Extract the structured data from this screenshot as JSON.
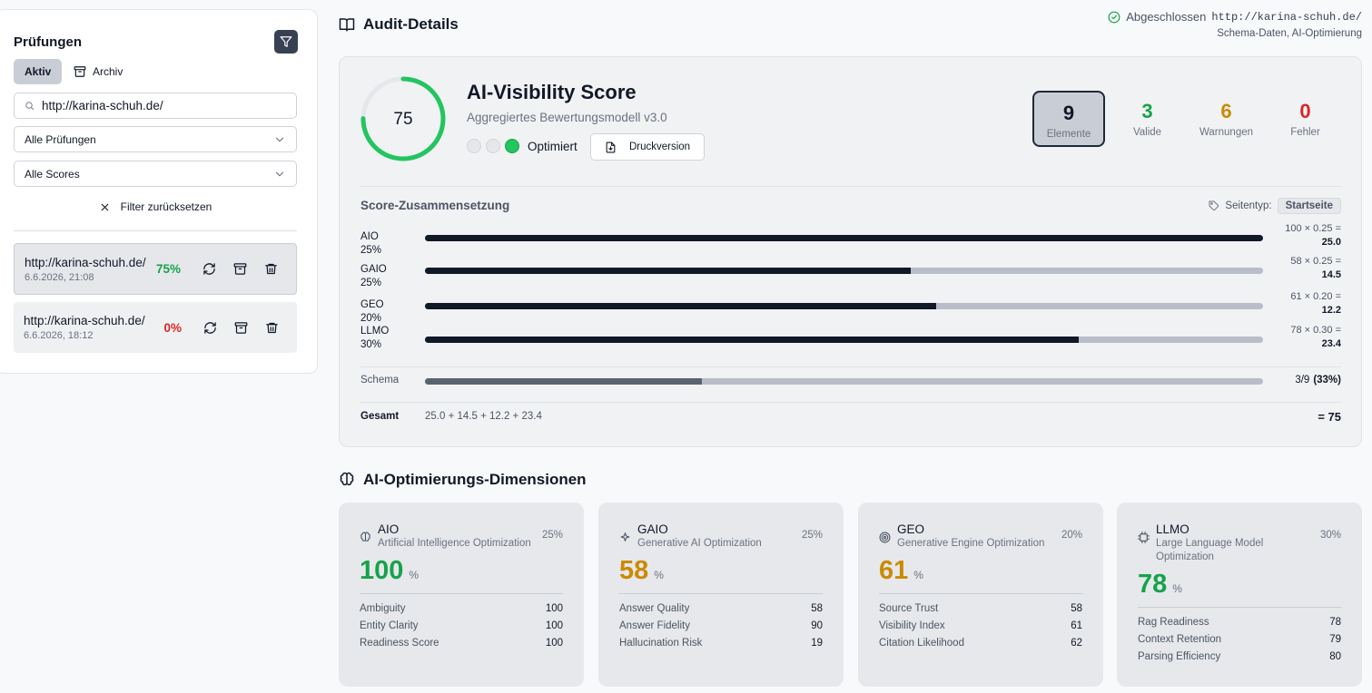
{
  "sidebar": {
    "title": "Prüfungen",
    "tabs": [
      "Aktiv",
      "Archiv"
    ],
    "search": "http://karina-schuh.de/",
    "filters": [
      "Alle Prüfungen",
      "Alle Scores"
    ],
    "reset": "Filter zurücksetzen",
    "audits": [
      {
        "url": "http://karina-schuh.de/",
        "date": "6.6.2026, 21:08",
        "score": "75%",
        "color": "#16a34a"
      },
      {
        "url": "http://karina-schuh.de/",
        "date": "6.6.2026, 18:12",
        "score": "0%",
        "color": "#dc2626"
      }
    ]
  },
  "header": {
    "title": "Audit-Details",
    "status": "Abgeschlossen",
    "url": "http://karina-schuh.de/",
    "subtitle": "Schema-Daten, AI-Optimierung"
  },
  "score_card": {
    "score": 75,
    "title": "AI-Visibility Score",
    "subtitle": "Aggregiertes Bewertungsmodell v3.0",
    "status": "Optimiert",
    "print": "Druckversion",
    "stats": [
      {
        "value": 9,
        "label": "Elemente",
        "color": "#111827"
      },
      {
        "value": 3,
        "label": "Valide",
        "color": "#16a34a"
      },
      {
        "value": 6,
        "label": "Warnungen",
        "color": "#ca8a04"
      },
      {
        "value": 0,
        "label": "Fehler",
        "color": "#dc2626"
      }
    ]
  },
  "composition": {
    "title": "Score-Zusammensetzung",
    "page_type_label": "Seitentyp:",
    "page_type": "Startseite",
    "rows": [
      {
        "label": "AIO 25%",
        "value": 100,
        "formula": "100 × 0.25 =",
        "result": "25.0"
      },
      {
        "label": "GAIO 25%",
        "value": 58,
        "formula": "58 × 0.25 =",
        "result": "14.5"
      },
      {
        "label": "GEO 20%",
        "value": 61,
        "formula": "61 × 0.20 =",
        "result": "12.2"
      },
      {
        "label": "LLMO 30%",
        "value": 78,
        "formula": "78 × 0.30 =",
        "result": "23.4"
      }
    ],
    "schema": {
      "label": "Schema",
      "value": 33,
      "text": "3/9",
      "percent": "(33%)"
    },
    "total": {
      "label": "Gesamt",
      "formula": "25.0 + 14.5 + 12.2 + 23.4",
      "result": "= 75"
    }
  },
  "dimensions": {
    "title": "AI-Optimierungs-Dimensionen",
    "cards": [
      {
        "name": "AIO",
        "subtitle": "Artificial Intelligence Optimization",
        "weight": "25%",
        "score": 100,
        "unit": "%",
        "color": "#16a34a",
        "metrics": [
          {
            "label": "Ambiguity",
            "value": 100
          },
          {
            "label": "Entity Clarity",
            "value": 100
          },
          {
            "label": "Readiness Score",
            "value": 100
          }
        ]
      },
      {
        "name": "GAIO",
        "subtitle": "Generative AI Optimization",
        "weight": "25%",
        "score": 58,
        "unit": "%",
        "color": "#ca8a04",
        "metrics": [
          {
            "label": "Answer Quality",
            "value": 58
          },
          {
            "label": "Answer Fidelity",
            "value": 90
          },
          {
            "label": "Hallucination Risk",
            "value": 19
          }
        ]
      },
      {
        "name": "GEO",
        "subtitle": "Generative Engine Optimization",
        "weight": "20%",
        "score": 61,
        "unit": "%",
        "color": "#ca8a04",
        "metrics": [
          {
            "label": "Source Trust",
            "value": 58
          },
          {
            "label": "Visibility Index",
            "value": 61
          },
          {
            "label": "Citation Likelihood",
            "value": 62
          }
        ]
      },
      {
        "name": "LLMO",
        "subtitle": "Large Language Model Optimization",
        "weight": "30%",
        "score": 78,
        "unit": "%",
        "color": "#16a34a",
        "metrics": [
          {
            "label": "Rag Readiness",
            "value": 78
          },
          {
            "label": "Context Retention",
            "value": 79
          },
          {
            "label": "Parsing Efficiency",
            "value": 80
          }
        ]
      }
    ]
  }
}
